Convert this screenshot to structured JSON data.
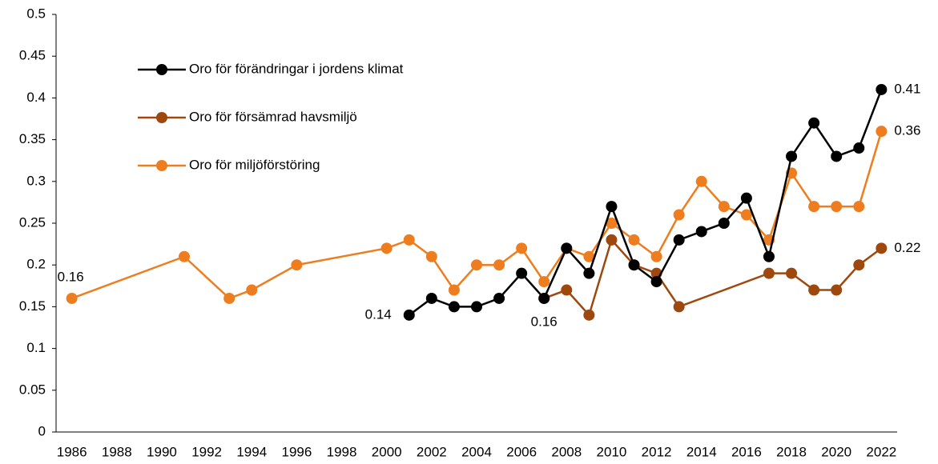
{
  "chart_data": {
    "type": "line",
    "legend": "upper left",
    "xlim": [
      1985.3,
      2022.7
    ],
    "xticks": [
      1986,
      1988,
      1990,
      1992,
      1994,
      1996,
      1998,
      2000,
      2002,
      2004,
      2006,
      2008,
      2010,
      2012,
      2014,
      2016,
      2018,
      2020,
      2022
    ],
    "ylim": [
      0,
      0.5
    ],
    "yticks": [
      0,
      0.05,
      0.1,
      0.15,
      0.2,
      0.25,
      0.3,
      0.35,
      0.4,
      0.45,
      0.5
    ],
    "grid": false,
    "series": [
      {
        "name": "Oro för förändringar i jordens klimat",
        "color": "#000000",
        "x": [
          2001,
          2002,
          2003,
          2004,
          2005,
          2006,
          2007,
          2008,
          2009,
          2010,
          2011,
          2012,
          2013,
          2014,
          2015,
          2016,
          2017,
          2018,
          2019,
          2020,
          2021,
          2022
        ],
        "values": [
          0.14,
          0.16,
          0.15,
          0.15,
          0.16,
          0.19,
          0.16,
          0.22,
          0.19,
          0.27,
          0.2,
          0.18,
          0.23,
          0.24,
          0.25,
          0.28,
          0.21,
          0.33,
          0.37,
          0.33,
          0.34,
          0.41
        ],
        "data_labels": [
          0.14,
          null,
          null,
          null,
          null,
          null,
          null,
          null,
          null,
          null,
          null,
          null,
          null,
          null,
          null,
          null,
          null,
          null,
          null,
          null,
          null,
          0.41
        ]
      },
      {
        "name": "Oro för försämrad havsmiljö",
        "color": "#9e480e",
        "x": [
          2007,
          2008,
          2009,
          2010,
          2011,
          2012,
          2013,
          2017,
          2018,
          2019,
          2020,
          2021,
          2022
        ],
        "values": [
          0.16,
          0.17,
          0.14,
          0.23,
          0.2,
          0.19,
          0.15,
          0.19,
          0.19,
          0.17,
          0.17,
          0.2,
          0.22
        ],
        "data_labels": [
          0.16,
          null,
          null,
          null,
          null,
          null,
          null,
          null,
          null,
          null,
          null,
          null,
          0.22
        ]
      },
      {
        "name": "Oro för miljöförstöring",
        "color": "#ed7d1e",
        "x": [
          1986,
          1991,
          1993,
          1994,
          1996,
          2000,
          2001,
          2002,
          2003,
          2004,
          2005,
          2006,
          2007,
          2008,
          2009,
          2010,
          2011,
          2012,
          2013,
          2014,
          2015,
          2016,
          2017,
          2018,
          2019,
          2020,
          2021,
          2022
        ],
        "values": [
          0.16,
          0.21,
          0.16,
          0.17,
          0.2,
          0.22,
          0.23,
          0.21,
          0.17,
          0.2,
          0.2,
          0.22,
          0.18,
          0.22,
          0.21,
          0.25,
          0.23,
          0.21,
          0.26,
          0.3,
          0.27,
          0.26,
          0.23,
          0.31,
          0.27,
          0.27,
          0.27,
          0.36
        ],
        "data_labels": [
          0.16,
          null,
          null,
          null,
          null,
          null,
          null,
          null,
          null,
          null,
          null,
          null,
          null,
          null,
          null,
          null,
          null,
          null,
          null,
          null,
          null,
          null,
          null,
          null,
          null,
          null,
          null,
          0.36
        ]
      }
    ]
  }
}
